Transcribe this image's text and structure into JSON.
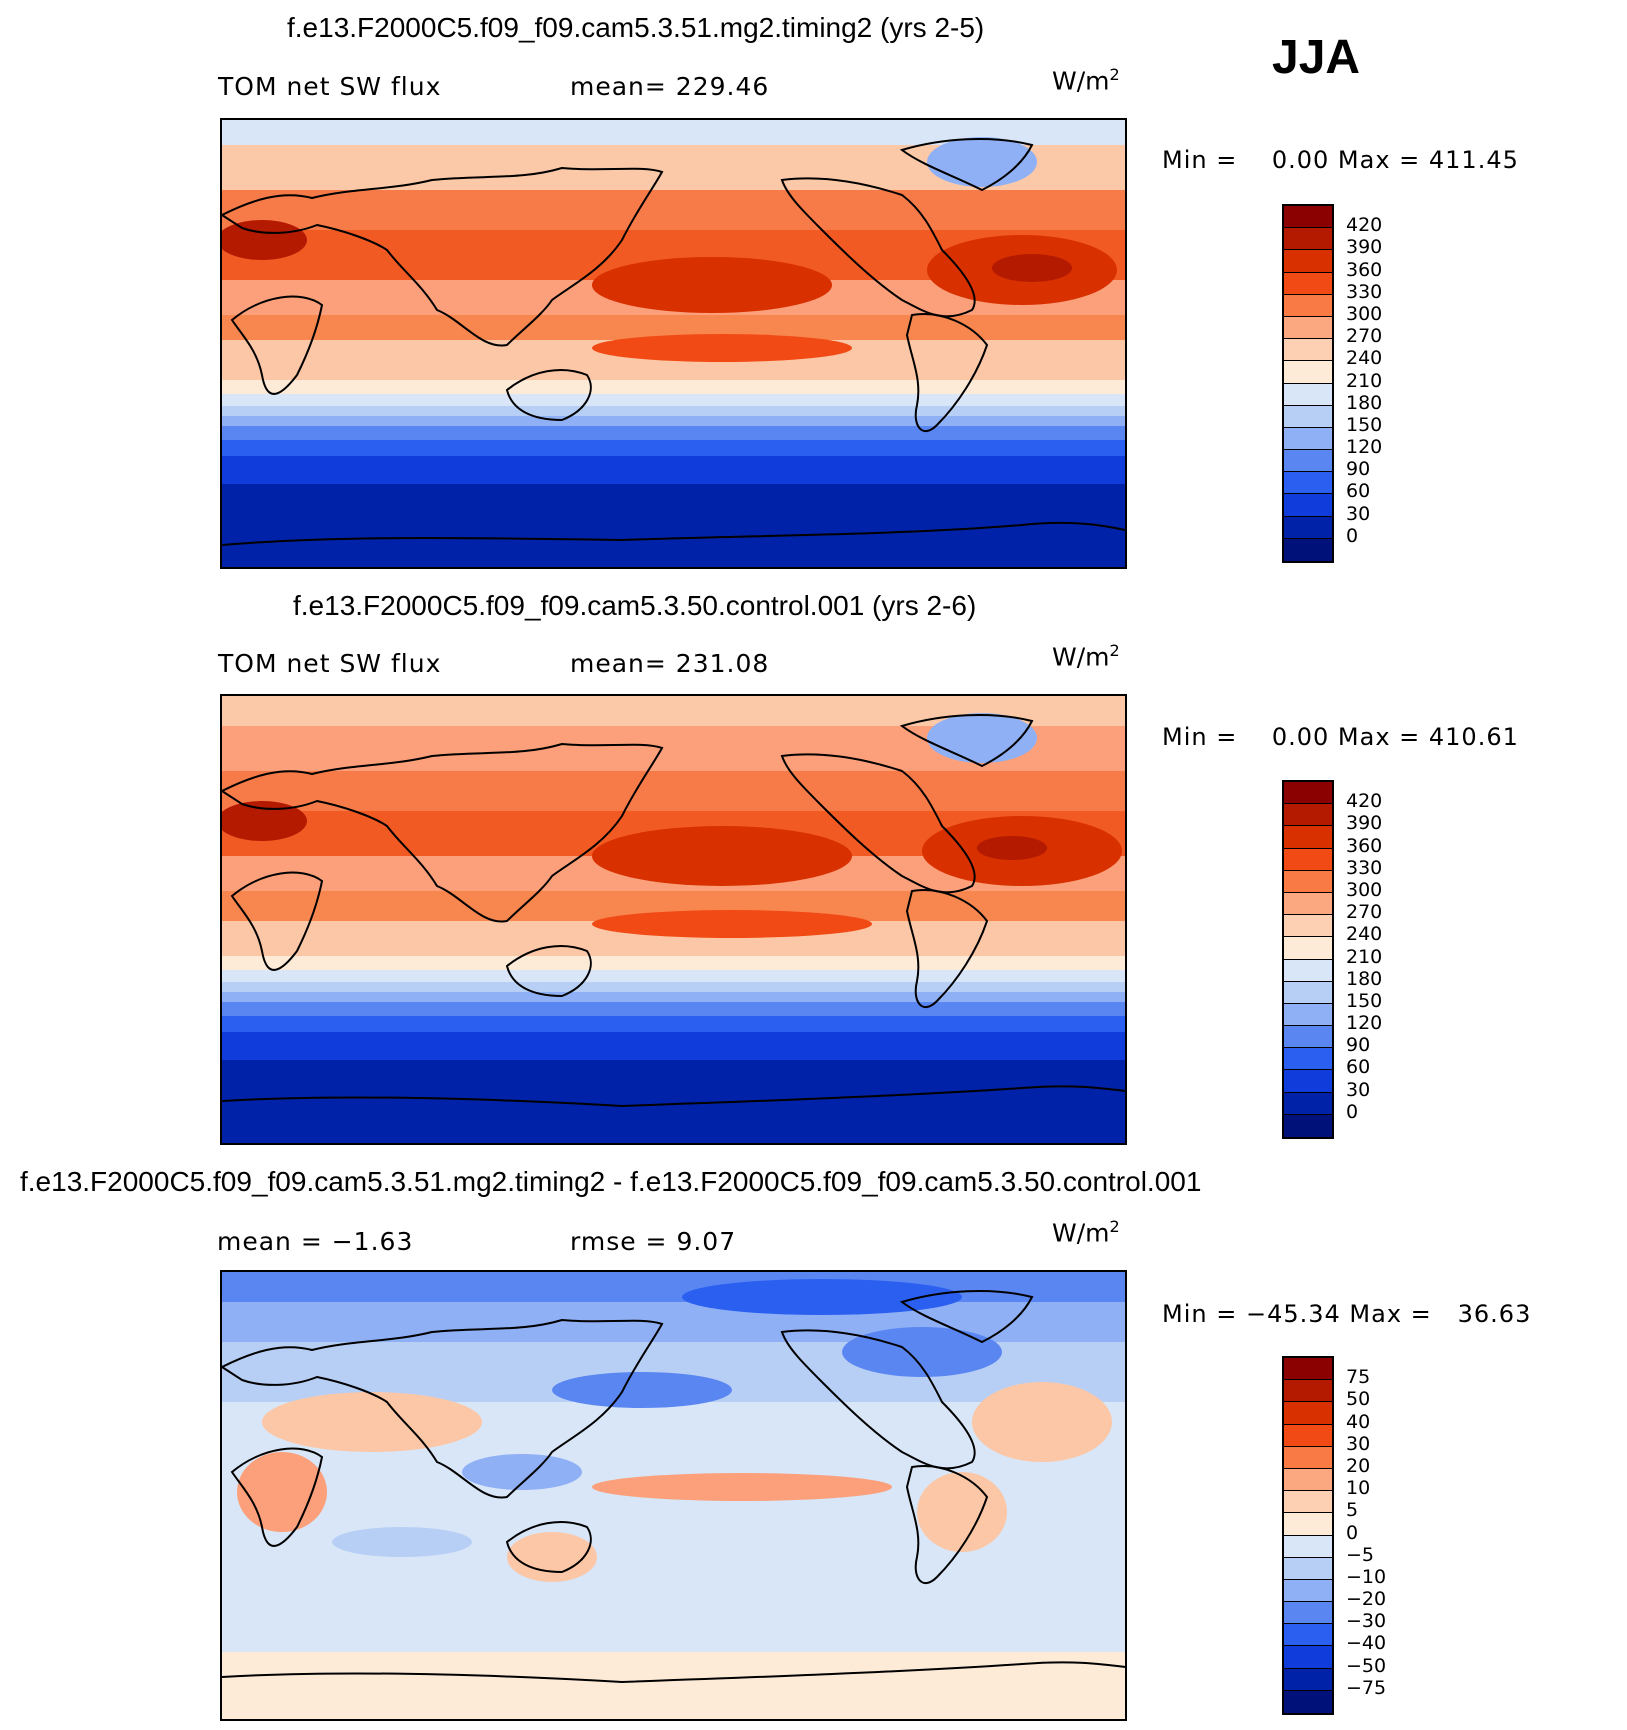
{
  "season": "JJA",
  "panels": [
    {
      "title": "f.e13.F2000C5.f09_f09.cam5.3.51.mg2.timing2 (yrs 2-5)",
      "left_label": "TOM net SW flux",
      "mid_label": "mean= 229.46",
      "units_base": "W/m",
      "units_sup": "2",
      "minmax": "Min =    0.00 Max = 411.45",
      "colorbar_ticks": [
        "420",
        "390",
        "360",
        "330",
        "300",
        "270",
        "240",
        "210",
        "180",
        "150",
        "120",
        "90",
        "60",
        "30",
        "0"
      ],
      "colorbar_colors": [
        "#8b0000",
        "#b31a00",
        "#d93000",
        "#f24a14",
        "#f97a45",
        "#fba780",
        "#fdd0b4",
        "#fdebd8",
        "#d8e6f8",
        "#b8cff5",
        "#8fb0f5",
        "#5a86f2",
        "#2b5ff0",
        "#0f3cdb",
        "#0022a8",
        "#00117a"
      ]
    },
    {
      "title": "f.e13.F2000C5.f09_f09.cam5.3.50.control.001 (yrs 2-6)",
      "left_label": "TOM net SW flux",
      "mid_label": "mean= 231.08",
      "units_base": "W/m",
      "units_sup": "2",
      "minmax": "Min =    0.00 Max = 410.61",
      "colorbar_ticks": [
        "420",
        "390",
        "360",
        "330",
        "300",
        "270",
        "240",
        "210",
        "180",
        "150",
        "120",
        "90",
        "60",
        "30",
        "0"
      ],
      "colorbar_colors": [
        "#8b0000",
        "#b31a00",
        "#d93000",
        "#f24a14",
        "#f97a45",
        "#fba780",
        "#fdd0b4",
        "#fdebd8",
        "#d8e6f8",
        "#b8cff5",
        "#8fb0f5",
        "#5a86f2",
        "#2b5ff0",
        "#0f3cdb",
        "#0022a8",
        "#00117a"
      ]
    },
    {
      "title": "f.e13.F2000C5.f09_f09.cam5.3.51.mg2.timing2 - f.e13.F2000C5.f09_f09.cam5.3.50.control.001",
      "left_label": "mean =   −1.63",
      "mid_label": "rmse =    9.07",
      "units_base": "W/m",
      "units_sup": "2",
      "minmax": "Min = −45.34 Max =   36.63",
      "colorbar_ticks": [
        "75",
        "50",
        "40",
        "30",
        "20",
        "10",
        "5",
        "0",
        "−5",
        "−10",
        "−20",
        "−30",
        "−40",
        "−50",
        "−75"
      ],
      "colorbar_colors": [
        "#8b0000",
        "#b31a00",
        "#d93000",
        "#f24a14",
        "#f97a45",
        "#fba780",
        "#fdd0b4",
        "#fdebd8",
        "#d8e6f8",
        "#b8cff5",
        "#8fb0f5",
        "#5a86f2",
        "#2b5ff0",
        "#0f3cdb",
        "#0022a8",
        "#00117a"
      ]
    }
  ]
}
